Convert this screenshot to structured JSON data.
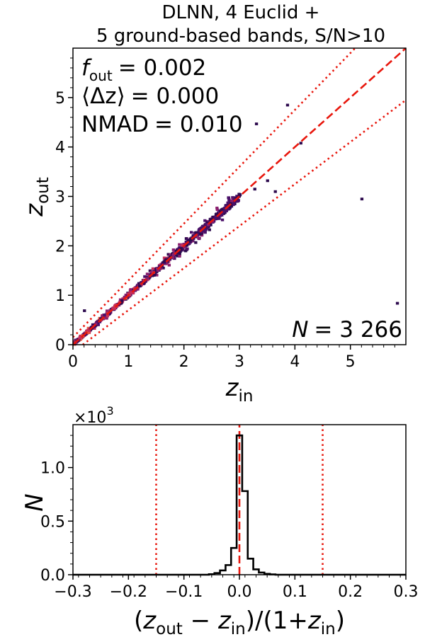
{
  "title": {
    "line1": "DLNN, 4 Euclid +",
    "line2": "5 ground-based bands, S/N>10"
  },
  "chart_data": [
    {
      "type": "scatter",
      "subtype": "2d-histogram",
      "xlabel": "z_in",
      "ylabel": "z_out",
      "xlim": [
        0,
        6
      ],
      "ylim": [
        0,
        6
      ],
      "xticks": [
        "0",
        "1",
        "2",
        "3",
        "4",
        "5"
      ],
      "yticks": [
        "0",
        "1",
        "2",
        "3",
        "4",
        "5"
      ],
      "stats": {
        "f_out_label": "f",
        "f_out_sub": "out",
        "f_out_value": "= 0.002",
        "mean_dz_label": "⟨Δz⟩",
        "mean_dz_value": "= 0.000",
        "nmad_label": "NMAD",
        "nmad_value": "= 0.010",
        "n_label": "N",
        "n_value": "= 3 266"
      },
      "reference_lines": {
        "one_to_one": "z_out = z_in (dashed red)",
        "outlier_bounds": "z_out = z_in ± 0.15(1+z_in) (dotted red)",
        "outlier_fraction": 0.15
      },
      "outliers": [
        [
          3.28,
          4.44
        ],
        [
          3.84,
          4.82
        ],
        [
          4.08,
          4.05
        ],
        [
          3.48,
          3.29
        ],
        [
          3.62,
          3.07
        ],
        [
          5.18,
          2.92
        ],
        [
          5.82,
          0.81
        ],
        [
          0.18,
          0.66
        ],
        [
          3.25,
          3.12
        ]
      ],
      "color_scale": [
        "#2d0a4e",
        "#4b1069",
        "#8a1f6e",
        "#c52e5a",
        "#ee5a3c"
      ]
    },
    {
      "type": "bar",
      "subtype": "step-histogram",
      "xlabel": "(z_out − z_in)/(1+z_in)",
      "ylabel": "N",
      "scale_label": "×10",
      "scale_exp": "3",
      "xlim": [
        -0.3,
        0.3
      ],
      "ylim": [
        0,
        1.4
      ],
      "xticks": [
        "−0.3",
        "−0.2",
        "−0.1",
        "0.0",
        "0.1",
        "0.2",
        "0.3"
      ],
      "yticks": [
        "0.0",
        "0.5",
        "1.0"
      ],
      "bin_width": 0.01,
      "bins": [
        {
          "x": -0.05,
          "y": 0.005
        },
        {
          "x": -0.04,
          "y": 0.015
        },
        {
          "x": -0.03,
          "y": 0.04
        },
        {
          "x": -0.02,
          "y": 0.09
        },
        {
          "x": -0.01,
          "y": 0.25
        },
        {
          "x": 0.0,
          "y": 1.3
        },
        {
          "x": 0.01,
          "y": 0.78
        },
        {
          "x": 0.02,
          "y": 0.15
        },
        {
          "x": 0.03,
          "y": 0.05
        },
        {
          "x": 0.04,
          "y": 0.02
        },
        {
          "x": 0.05,
          "y": 0.008
        },
        {
          "x": 0.06,
          "y": 0.003
        }
      ],
      "vlines": [
        -0.15,
        0.0,
        0.15
      ]
    }
  ]
}
